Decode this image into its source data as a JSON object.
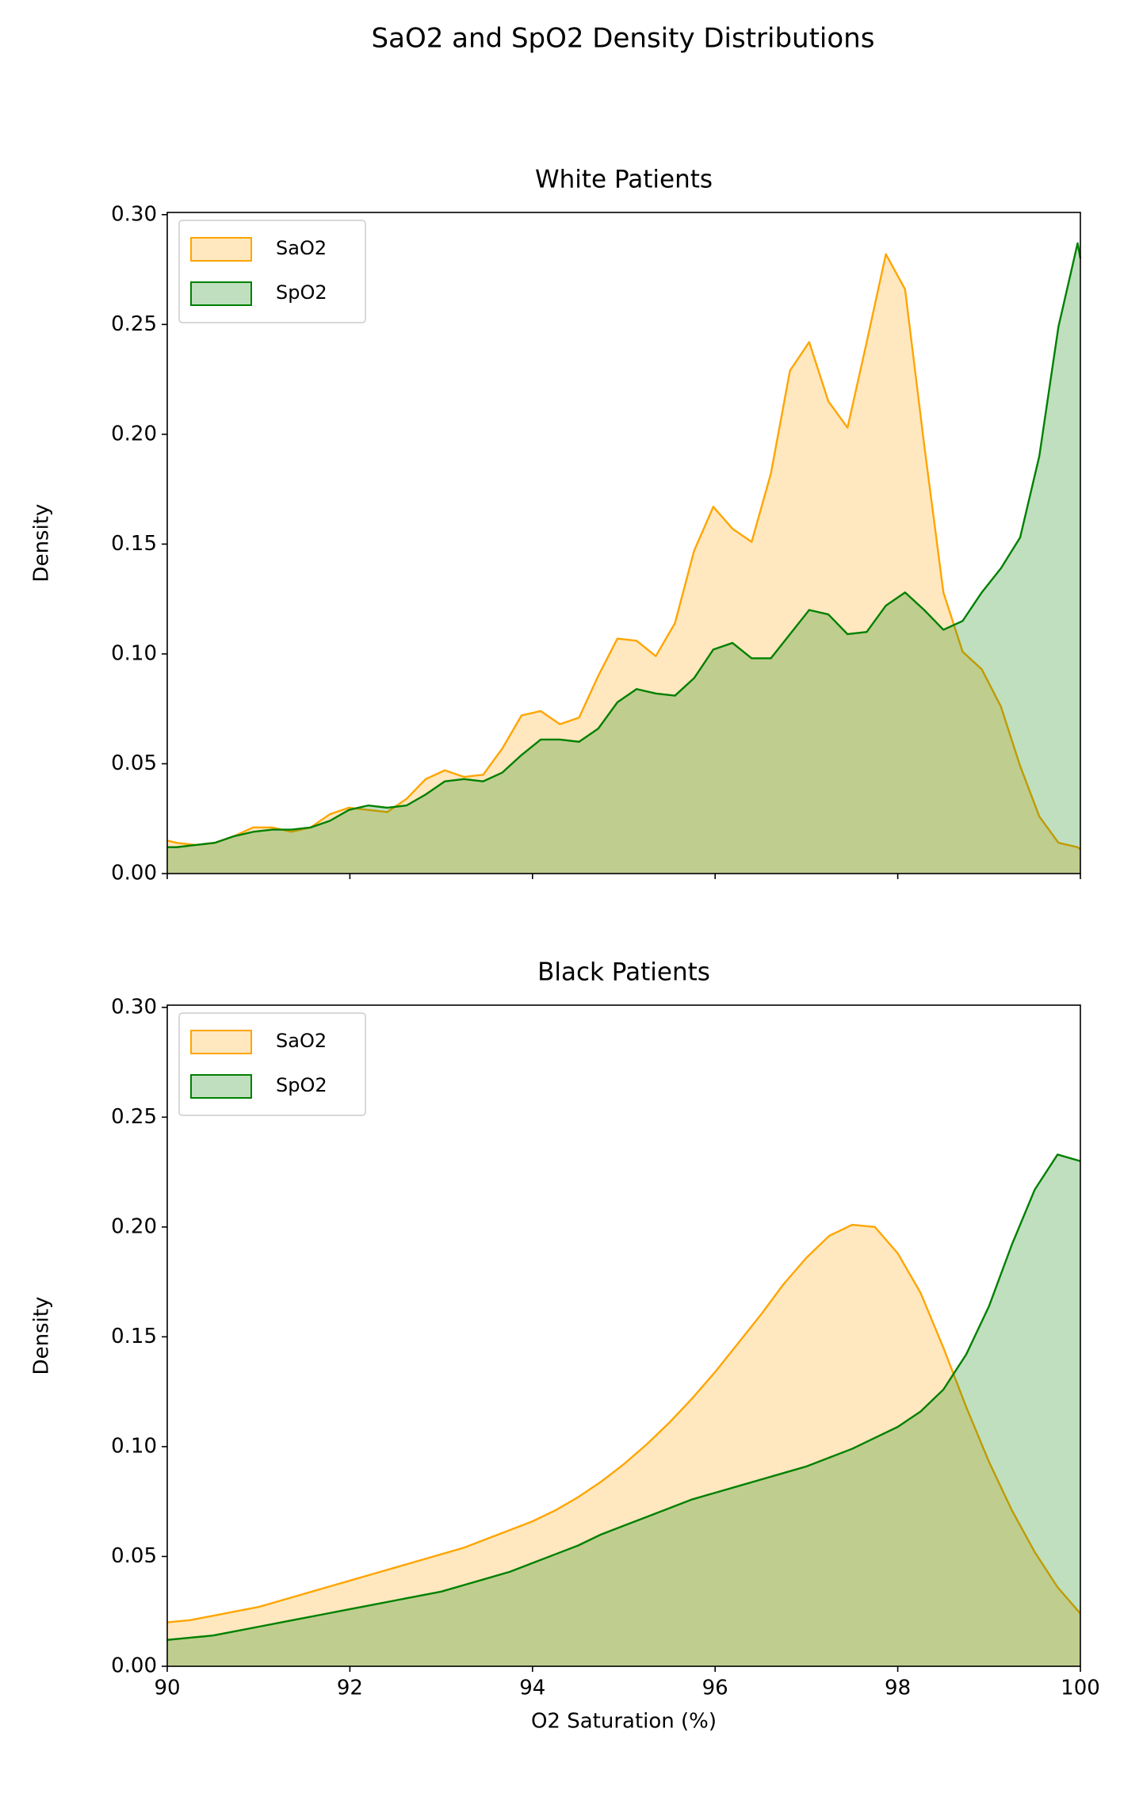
{
  "title": "SaO2 and SpO2 Density Distributions",
  "chart_data": [
    {
      "type": "area",
      "title": "White Patients",
      "ylabel": "Density",
      "legend": "upper left",
      "xlim": [
        90,
        100
      ],
      "xticks": [
        90,
        92,
        94,
        96,
        98,
        100
      ],
      "ylim": [
        0,
        0.301
      ],
      "yticks": [
        {
          "value": 0,
          "label": "0.00"
        },
        {
          "value": 0.05,
          "label": "0.05"
        },
        {
          "value": 0.1,
          "label": "0.10"
        },
        {
          "value": 0.15,
          "label": "0.15"
        },
        {
          "value": 0.2,
          "label": "0.20"
        },
        {
          "value": 0.25,
          "label": "0.25"
        },
        {
          "value": 0.3,
          "label": "0.30"
        }
      ],
      "x": [
        90.0,
        90.1,
        90.31,
        90.52,
        90.73,
        90.94,
        91.15,
        91.36,
        91.57,
        91.78,
        91.99,
        92.2,
        92.41,
        92.62,
        92.83,
        93.04,
        93.25,
        93.46,
        93.67,
        93.88,
        94.09,
        94.3,
        94.51,
        94.72,
        94.93,
        95.14,
        95.35,
        95.56,
        95.77,
        95.98,
        96.19,
        96.4,
        96.61,
        96.82,
        97.03,
        97.24,
        97.45,
        97.66,
        97.87,
        98.08,
        98.29,
        98.5,
        98.71,
        98.92,
        99.13,
        99.34,
        99.55,
        99.76,
        99.97,
        100.0
      ],
      "series": [
        {
          "name": "SaO2",
          "color": "#ffa500",
          "values": [
            0.015,
            0.014,
            0.013,
            0.014,
            0.017,
            0.021,
            0.021,
            0.019,
            0.021,
            0.027,
            0.03,
            0.029,
            0.028,
            0.034,
            0.043,
            0.047,
            0.044,
            0.045,
            0.057,
            0.072,
            0.074,
            0.068,
            0.071,
            0.09,
            0.107,
            0.106,
            0.099,
            0.114,
            0.147,
            0.167,
            0.157,
            0.151,
            0.182,
            0.229,
            0.242,
            0.215,
            0.203,
            0.242,
            0.282,
            0.266,
            0.195,
            0.128,
            0.101,
            0.093,
            0.076,
            0.049,
            0.026,
            0.014,
            0.012,
            0.011
          ]
        },
        {
          "name": "SpO2",
          "color": "#008000",
          "values": [
            0.012,
            0.012,
            0.013,
            0.014,
            0.017,
            0.019,
            0.02,
            0.02,
            0.021,
            0.024,
            0.029,
            0.031,
            0.03,
            0.031,
            0.036,
            0.042,
            0.043,
            0.042,
            0.046,
            0.054,
            0.061,
            0.061,
            0.06,
            0.066,
            0.078,
            0.084,
            0.082,
            0.081,
            0.089,
            0.102,
            0.105,
            0.098,
            0.098,
            0.109,
            0.12,
            0.118,
            0.109,
            0.11,
            0.122,
            0.128,
            0.12,
            0.111,
            0.115,
            0.128,
            0.139,
            0.153,
            0.19,
            0.249,
            0.287,
            0.28
          ]
        }
      ]
    },
    {
      "type": "area",
      "title": "Black Patients",
      "ylabel": "Density",
      "xlabel": "O2 Saturation (%)",
      "legend": "upper left",
      "xlim": [
        90,
        100
      ],
      "xticks": [
        90,
        92,
        94,
        96,
        98,
        100
      ],
      "ylim": [
        0,
        0.301
      ],
      "yticks": [
        {
          "value": 0,
          "label": "0.00"
        },
        {
          "value": 0.05,
          "label": "0.05"
        },
        {
          "value": 0.1,
          "label": "0.10"
        },
        {
          "value": 0.15,
          "label": "0.15"
        },
        {
          "value": 0.2,
          "label": "0.20"
        },
        {
          "value": 0.25,
          "label": "0.25"
        },
        {
          "value": 0.3,
          "label": "0.30"
        }
      ],
      "x": [
        90,
        90.25,
        90.5,
        90.75,
        91,
        91.25,
        91.5,
        91.75,
        92,
        92.25,
        92.5,
        92.75,
        93,
        93.25,
        93.5,
        93.75,
        94,
        94.25,
        94.5,
        94.75,
        95,
        95.25,
        95.5,
        95.75,
        96,
        96.25,
        96.5,
        96.75,
        97,
        97.25,
        97.5,
        97.75,
        98,
        98.25,
        98.5,
        98.75,
        99,
        99.25,
        99.5,
        99.75,
        100
      ],
      "series": [
        {
          "name": "SaO2",
          "color": "#ffa500",
          "values": [
            0.02,
            0.021,
            0.023,
            0.025,
            0.027,
            0.03,
            0.033,
            0.036,
            0.039,
            0.042,
            0.045,
            0.048,
            0.051,
            0.054,
            0.058,
            0.062,
            0.066,
            0.071,
            0.077,
            0.084,
            0.092,
            0.101,
            0.111,
            0.122,
            0.134,
            0.147,
            0.16,
            0.174,
            0.186,
            0.196,
            0.201,
            0.2,
            0.188,
            0.17,
            0.145,
            0.118,
            0.093,
            0.071,
            0.052,
            0.036,
            0.024
          ]
        },
        {
          "name": "SpO2",
          "color": "#008000",
          "values": [
            0.012,
            0.013,
            0.014,
            0.016,
            0.018,
            0.02,
            0.022,
            0.024,
            0.026,
            0.028,
            0.03,
            0.032,
            0.034,
            0.037,
            0.04,
            0.043,
            0.047,
            0.051,
            0.055,
            0.06,
            0.064,
            0.068,
            0.072,
            0.076,
            0.079,
            0.082,
            0.085,
            0.088,
            0.091,
            0.095,
            0.099,
            0.104,
            0.109,
            0.116,
            0.126,
            0.142,
            0.164,
            0.192,
            0.217,
            0.233,
            0.23
          ]
        }
      ]
    }
  ]
}
